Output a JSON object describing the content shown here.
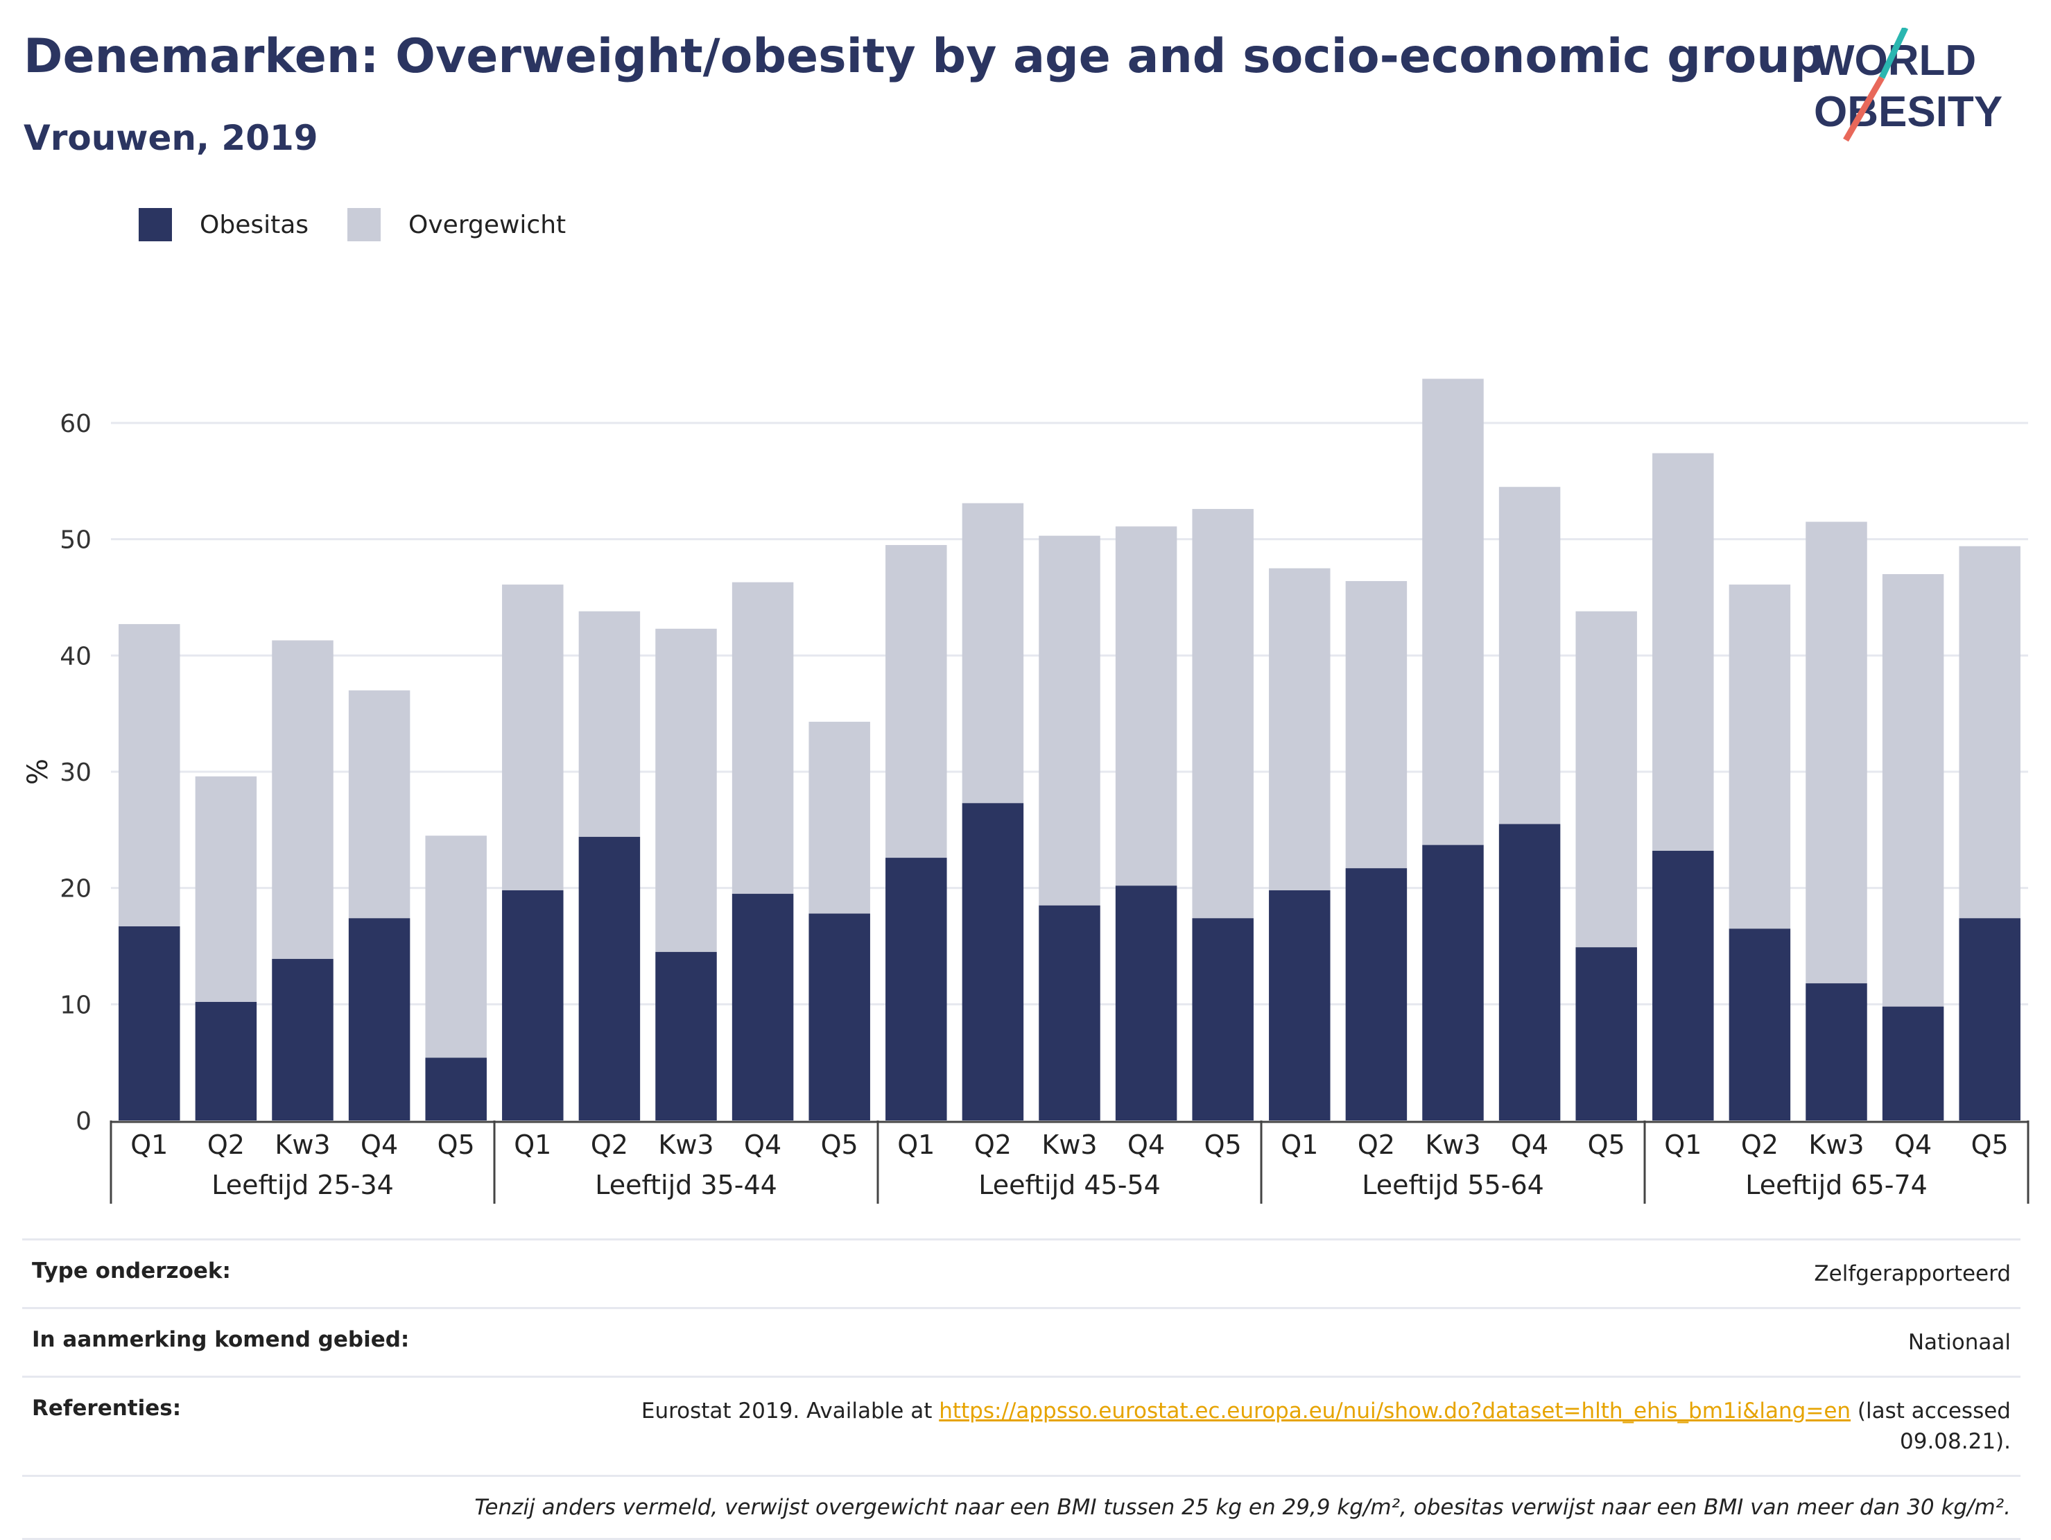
{
  "header": {
    "title": "Denemarken: Overweight/obesity by age and socio-economic group",
    "subtitle": "Vrouwen, 2019"
  },
  "logo": {
    "line1": "WORLD",
    "line2": "OBESITY"
  },
  "legend": {
    "obesity_label": "Obesitas",
    "overweight_label": "Overgewicht"
  },
  "colors": {
    "obesity": "#2b3561",
    "overweight": "#c9ccd8",
    "grid": "#e6e8ef",
    "logo_teal": "#2ab6b0",
    "logo_red": "#e8685a"
  },
  "chart_data": {
    "type": "bar",
    "stacked": true,
    "ylabel": "%",
    "ylim": [
      0,
      65
    ],
    "yticks": [
      0,
      10,
      20,
      30,
      40,
      50,
      60
    ],
    "groups": [
      {
        "label": "Leeftijd 25-34",
        "categories": [
          "Q1",
          "Q2",
          "Kw3",
          "Q4",
          "Q5"
        ],
        "obesity": [
          16.7,
          10.2,
          13.9,
          17.4,
          5.4
        ],
        "total": [
          42.7,
          29.6,
          41.3,
          37.0,
          24.5
        ]
      },
      {
        "label": "Leeftijd 35-44",
        "categories": [
          "Q1",
          "Q2",
          "Kw3",
          "Q4",
          "Q5"
        ],
        "obesity": [
          19.8,
          24.4,
          14.5,
          19.5,
          17.8
        ],
        "total": [
          46.1,
          43.8,
          42.3,
          46.3,
          34.3
        ]
      },
      {
        "label": "Leeftijd 45-54",
        "categories": [
          "Q1",
          "Q2",
          "Kw3",
          "Q4",
          "Q5"
        ],
        "obesity": [
          22.6,
          27.3,
          18.5,
          20.2,
          17.4
        ],
        "total": [
          49.5,
          53.1,
          50.3,
          51.1,
          52.6
        ]
      },
      {
        "label": "Leeftijd 55-64",
        "categories": [
          "Q1",
          "Q2",
          "Kw3",
          "Q4",
          "Q5"
        ],
        "obesity": [
          19.8,
          21.7,
          23.7,
          25.5,
          14.9
        ],
        "total": [
          47.5,
          46.4,
          63.8,
          54.5,
          43.8
        ]
      },
      {
        "label": "Leeftijd 65-74",
        "categories": [
          "Q1",
          "Q2",
          "Kw3",
          "Q4",
          "Q5"
        ],
        "obesity": [
          23.2,
          16.5,
          11.8,
          9.8,
          17.4
        ],
        "total": [
          57.4,
          46.1,
          51.5,
          47.0,
          49.4
        ]
      }
    ]
  },
  "info": {
    "survey_type_label": "Type onderzoek:",
    "survey_type_value": "Zelfgerapporteerd",
    "area_label": "In aanmerking komend gebied:",
    "area_value": "Nationaal",
    "references_label": "Referenties:",
    "references_prefix": "Eurostat 2019. Available at ",
    "references_link": "https://appsso.eurostat.ec.europa.eu/nui/show.do?dataset=hlth_ehis_bm1i&lang=en",
    "references_suffix": " (last accessed 09.08.21).",
    "footnote": "Tenzij anders vermeld, verwijst overgewicht naar een BMI tussen 25 kg en 29,9 kg/m², obesitas verwijst naar een BMI van meer dan 30 kg/m²."
  }
}
